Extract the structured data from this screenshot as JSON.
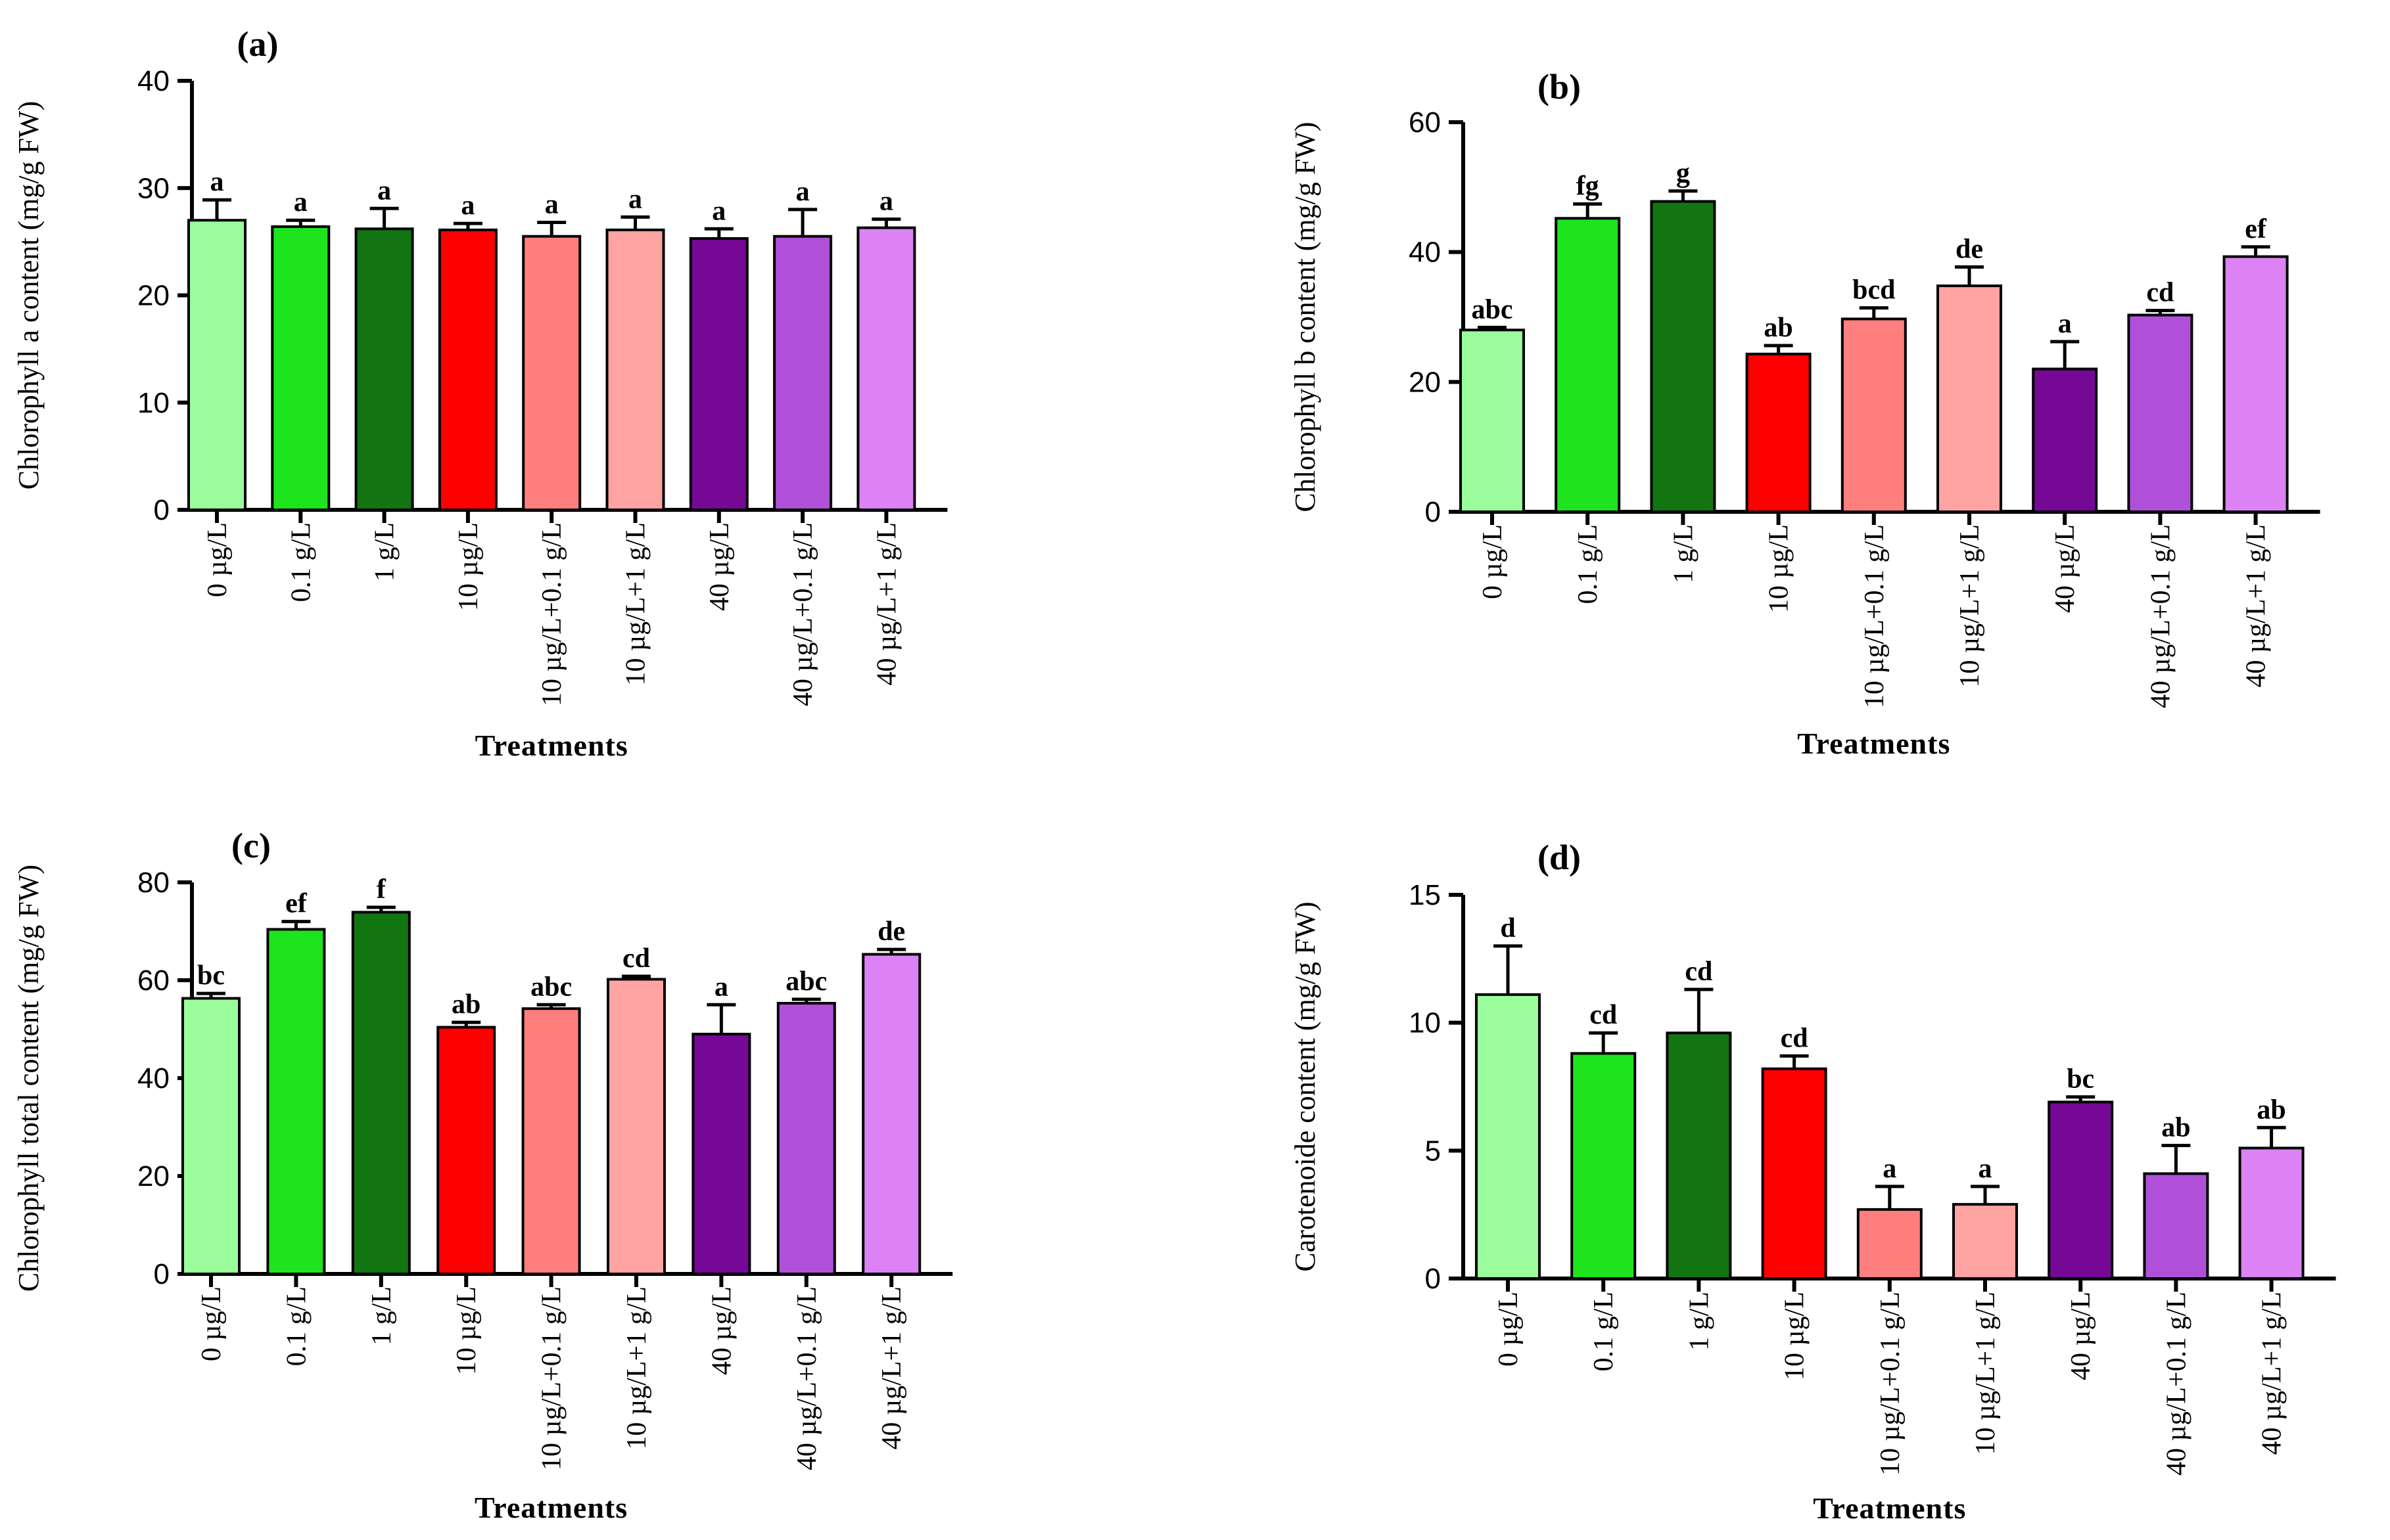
{
  "colors": [
    "#9afc9a",
    "#1de41d",
    "#127512",
    "#ff0000",
    "#ff7f7f",
    "#ffa3a3",
    "#760896",
    "#b050d8",
    "#dc82f4"
  ],
  "chart_data": [
    {
      "type": "bar",
      "title": "(a)",
      "xlabel": "Treatments",
      "ylabel": "Chlorophyll a content (mg/g FW)",
      "ylim": [
        0,
        40
      ],
      "yticks": [
        "0",
        "10",
        "20",
        "30",
        "40"
      ],
      "categories": [
        "0 µg/L",
        "0.1 g/L",
        "1 g/L",
        "10 µg/L",
        "10 µg/L+0.1 g/L",
        "10 µg/L+1 g/L",
        "40 µg/L",
        "40 µg/L+0.1 g/L",
        "40 µg/L+1 g/L"
      ],
      "values": [
        27.0,
        26.4,
        26.2,
        26.1,
        25.5,
        26.1,
        25.3,
        25.5,
        26.3
      ],
      "errors": [
        1.9,
        0.6,
        1.9,
        0.6,
        1.3,
        1.2,
        0.9,
        2.5,
        0.8
      ],
      "significance": [
        "a",
        "a",
        "a",
        "a",
        "a",
        "a",
        "a",
        "a",
        "a"
      ]
    },
    {
      "type": "bar",
      "title": "(b)",
      "xlabel": "Treatments",
      "ylabel": "Chlorophyll b content (mg/g FW)",
      "ylim": [
        0,
        60
      ],
      "yticks": [
        "0",
        "20",
        "40",
        "60"
      ],
      "categories": [
        "0 µg/L",
        "0.1 g/L",
        "1 g/L",
        "10 µg/L",
        "10 µg/L+0.1 g/L",
        "10 µg/L+1 g/L",
        "40 µg/L",
        "40 µg/L+0.1 g/L",
        "40 µg/L+1 g/L"
      ],
      "values": [
        28.0,
        45.2,
        47.8,
        24.3,
        29.7,
        34.8,
        22.0,
        30.3,
        39.3
      ],
      "errors": [
        0.4,
        2.2,
        1.6,
        1.3,
        1.7,
        2.9,
        4.2,
        0.7,
        1.5
      ],
      "significance": [
        "abc",
        "fg",
        "g",
        "ab",
        "bcd",
        "de",
        "a",
        "cd",
        "ef"
      ]
    },
    {
      "type": "bar",
      "title": "(c)",
      "xlabel": "Treatments",
      "ylabel": "Chlorophyll total content (mg/g FW)",
      "ylim": [
        0,
        80
      ],
      "yticks": [
        "0",
        "20",
        "40",
        "60",
        "80"
      ],
      "categories": [
        "0 µg/L",
        "0.1 g/L",
        "1 g/L",
        "10 µg/L",
        "10 µg/L+0.1 g/L",
        "10 µg/L+1 g/L",
        "40 µg/L",
        "40 µg/L+0.1 g/L",
        "40 µg/L+1 g/L"
      ],
      "values": [
        56.3,
        70.4,
        73.9,
        50.4,
        54.2,
        60.2,
        49.0,
        55.3,
        65.3
      ],
      "errors": [
        1.0,
        1.6,
        1.0,
        1.0,
        0.8,
        0.6,
        6.0,
        0.8,
        1.0
      ],
      "significance": [
        "bc",
        "ef",
        "f",
        "ab",
        "abc",
        "cd",
        "a",
        "abc",
        "de"
      ]
    },
    {
      "type": "bar",
      "title": "(d)",
      "xlabel": "Treatments",
      "ylabel": "Carotenoide content (mg/g FW)",
      "ylim": [
        0,
        15
      ],
      "yticks": [
        "0",
        "5",
        "10",
        "15"
      ],
      "categories": [
        "0 µg/L",
        "0.1 g/L",
        "1 g/L",
        "10 µg/L",
        "10 µg/L+0.1 g/L",
        "10 µg/L+1 g/L",
        "40 µg/L",
        "40 µg/L+0.1 g/L",
        "40 µg/L+1 g/L"
      ],
      "values": [
        11.1,
        8.8,
        9.6,
        8.2,
        2.7,
        2.9,
        6.9,
        4.1,
        5.1
      ],
      "errors": [
        1.9,
        0.8,
        1.7,
        0.5,
        0.9,
        0.7,
        0.2,
        1.1,
        0.8
      ],
      "significance": [
        "d",
        "cd",
        "cd",
        "cd",
        "a",
        "a",
        "bc",
        "ab",
        "ab"
      ]
    }
  ]
}
